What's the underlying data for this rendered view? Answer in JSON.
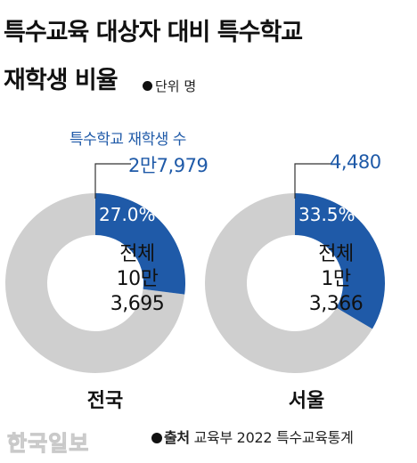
{
  "title_line1": "특수교육 대상자 대비 특수학교",
  "title_line2": "재학생 비율",
  "unit_label": "단위 명",
  "legend_label": "특수학교 재학생 수",
  "source_label": "출처",
  "source_text": "교육부 2022 특수교육통계",
  "watermark": "한국일보",
  "colors": {
    "highlight": "#1f5aa8",
    "rest": "#cfcfcf",
    "text_accent": "#1f5aa8"
  },
  "chart_data": [
    {
      "type": "pie",
      "region": "전국",
      "share_percent": 27.0,
      "share_label": "27.0%",
      "special_school_students": 27979,
      "special_school_students_label": "2만7,979",
      "total_label_line1": "전체",
      "total_label_line2": "10만",
      "total_label_line3": "3,695",
      "total": 103695
    },
    {
      "type": "pie",
      "region": "서울",
      "share_percent": 33.5,
      "share_label": "33.5%",
      "special_school_students": 4480,
      "special_school_students_label": "4,480",
      "total_label_line1": "전체",
      "total_label_line2": "1만",
      "total_label_line3": "3,366",
      "total": 13366
    }
  ]
}
